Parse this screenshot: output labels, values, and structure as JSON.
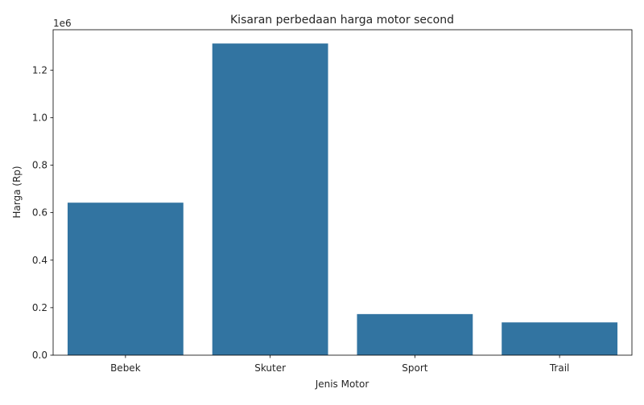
{
  "chart_data": {
    "type": "bar",
    "title": "Kisaran perbedaan harga motor second",
    "xlabel": "Jenis Motor",
    "ylabel": "Harga (Rp)",
    "offset_label": "1e6",
    "categories": [
      "Bebek",
      "Skuter",
      "Sport",
      "Trail"
    ],
    "values": [
      642000,
      1312000,
      173000,
      138000
    ],
    "ylim": [
      0,
      1370000
    ],
    "yticks": [
      0,
      200000,
      400000,
      600000,
      800000,
      1000000,
      1200000
    ],
    "ytick_labels": [
      "0.0",
      "0.2",
      "0.4",
      "0.6",
      "0.8",
      "1.0",
      "1.2"
    ],
    "bar_color": "#3274a1",
    "grid": false,
    "legend": "none"
  }
}
